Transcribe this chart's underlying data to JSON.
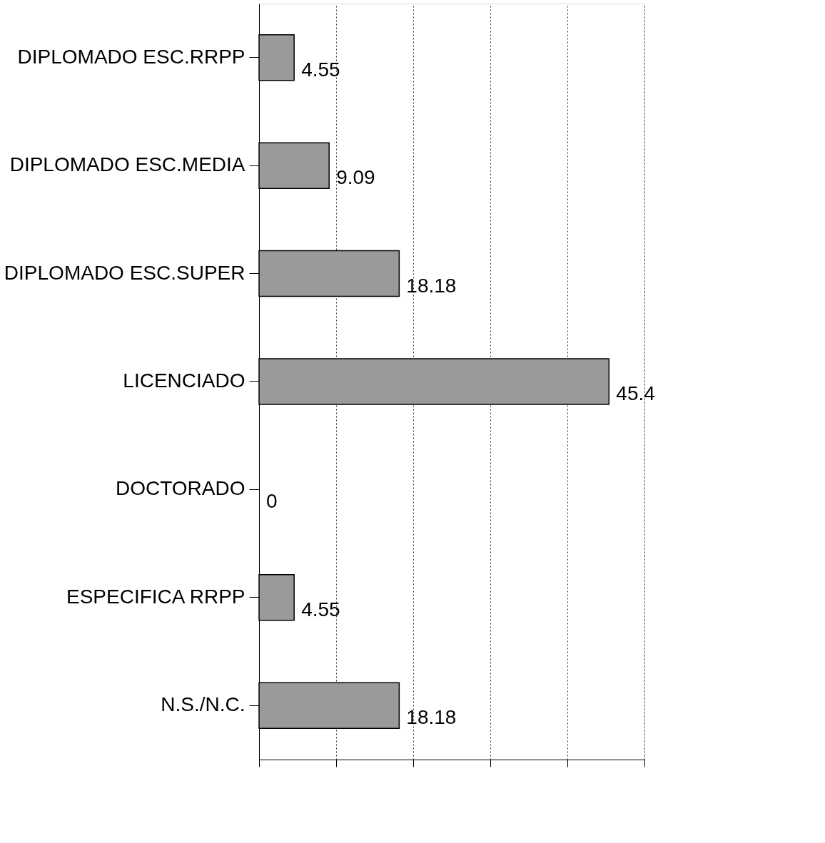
{
  "chart_data": {
    "type": "bar",
    "orientation": "horizontal",
    "categories": [
      "DIPLOMADO ESC.RRPP",
      "DIPLOMADO ESC.MEDIA",
      "DIPLOMADO ESC.SUPER",
      "LICENCIADO",
      "DOCTORADO",
      "ESPECIFICA RRPP",
      "N.S./N.C."
    ],
    "values": [
      4.55,
      9.09,
      18.18,
      45.4,
      0,
      4.55,
      18.18
    ],
    "color": "#9a9a9a",
    "xlim": [
      0,
      50
    ],
    "xticks": [
      {
        "value": 0,
        "label": null
      },
      {
        "value": 10,
        "label": null
      },
      {
        "value": 20,
        "label": null
      },
      {
        "value": 30,
        "label": null
      },
      {
        "value": 40,
        "label": null
      },
      {
        "value": 50,
        "label": null
      }
    ],
    "tick_labels": "y",
    "grid": "x",
    "data_labels": true
  }
}
